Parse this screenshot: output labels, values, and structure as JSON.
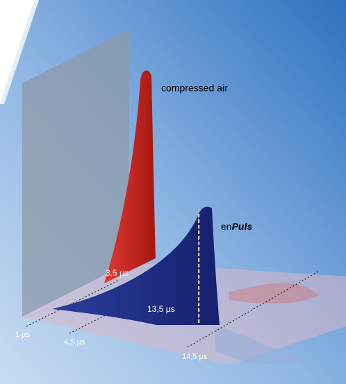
{
  "labels": {
    "compressed_air": "compressed air",
    "enpuls_prefix": "en",
    "enpuls_suffix": "Puls"
  },
  "peak_labels": {
    "compressed_air_width": "3,5 µs",
    "enpuls_width": "13,5 µs"
  },
  "time_axis": [
    "1 µs",
    "4,5 µs",
    "14,5 µs"
  ]
}
